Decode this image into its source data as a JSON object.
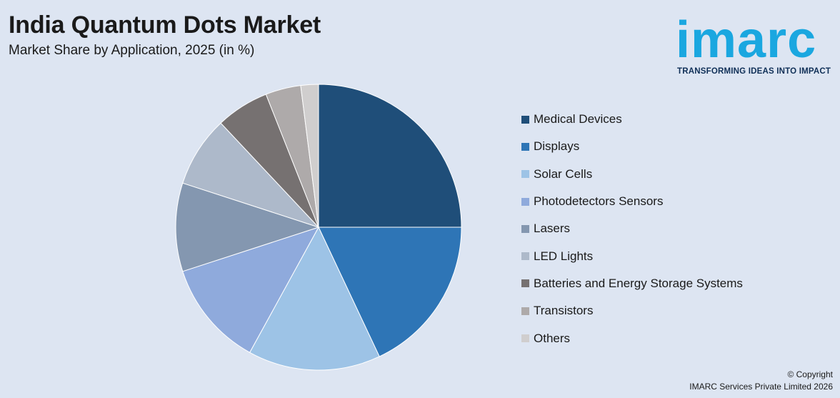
{
  "header": {
    "title": "India Quantum Dots Market",
    "subtitle": "Market Share by Application, 2025 (in %)"
  },
  "logo": {
    "wordmark": "imarc",
    "tagline": "TRANSFORMING IDEAS INTO IMPACT",
    "color": "#1aa7e0"
  },
  "chart_data": {
    "type": "pie",
    "title": "India Quantum Dots Market",
    "subtitle": "Market Share by Application, 2025 (in %)",
    "legend_position": "right",
    "start_angle_deg": 0,
    "direction": "clockwise",
    "slices": [
      {
        "label": "Medical Devices",
        "value": 25,
        "color": "#1f4e79"
      },
      {
        "label": "Displays",
        "value": 18,
        "color": "#2e75b6"
      },
      {
        "label": "Solar Cells",
        "value": 15,
        "color": "#9dc3e6"
      },
      {
        "label": "Photodetectors Sensors",
        "value": 12,
        "color": "#8faadc"
      },
      {
        "label": "Lasers",
        "value": 10,
        "color": "#8497b0"
      },
      {
        "label": "LED Lights",
        "value": 8,
        "color": "#adb9ca"
      },
      {
        "label": "Batteries and Energy Storage Systems",
        "value": 6,
        "color": "#767171"
      },
      {
        "label": "Transistors",
        "value": 4,
        "color": "#aeaaaa"
      },
      {
        "label": "Others",
        "value": 2,
        "color": "#d0cece"
      }
    ]
  },
  "footer": {
    "copyright": "© Copyright",
    "company": "IMARC Services Private Limited 2026"
  }
}
